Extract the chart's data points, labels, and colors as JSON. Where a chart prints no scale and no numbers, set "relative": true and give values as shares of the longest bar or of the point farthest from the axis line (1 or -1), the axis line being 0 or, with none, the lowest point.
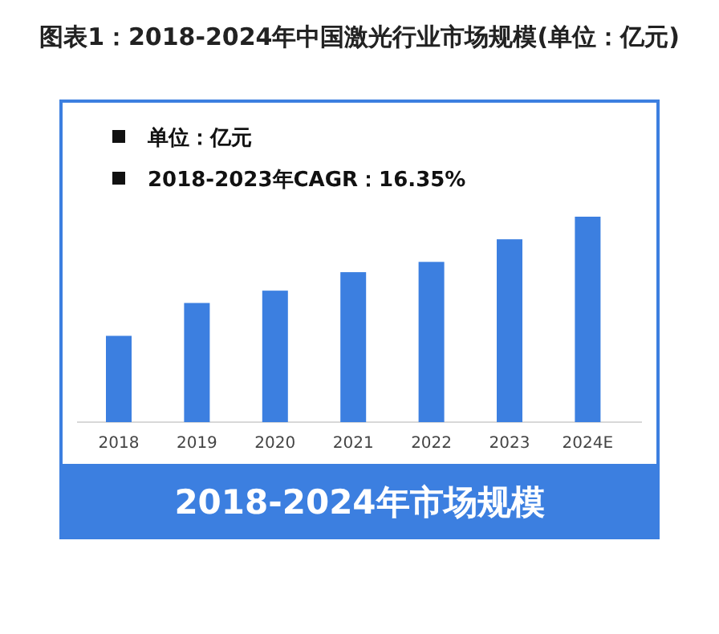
{
  "chart_data": {
    "type": "bar",
    "title": "图表1：2018-2024年中国激光行业市场规模(单位：亿元)",
    "subtitle": "2018-2024年市场规模",
    "annotations": [
      "单位：亿元",
      "2018-2023年CAGR：16.35%"
    ],
    "categories": [
      "2018",
      "2019",
      "2020",
      "2021",
      "2022",
      "2023",
      "2024E"
    ],
    "values": [
      0.42,
      0.58,
      0.64,
      0.73,
      0.78,
      0.89,
      1
    ],
    "color": "#3c7fe0",
    "relative": true
  }
}
